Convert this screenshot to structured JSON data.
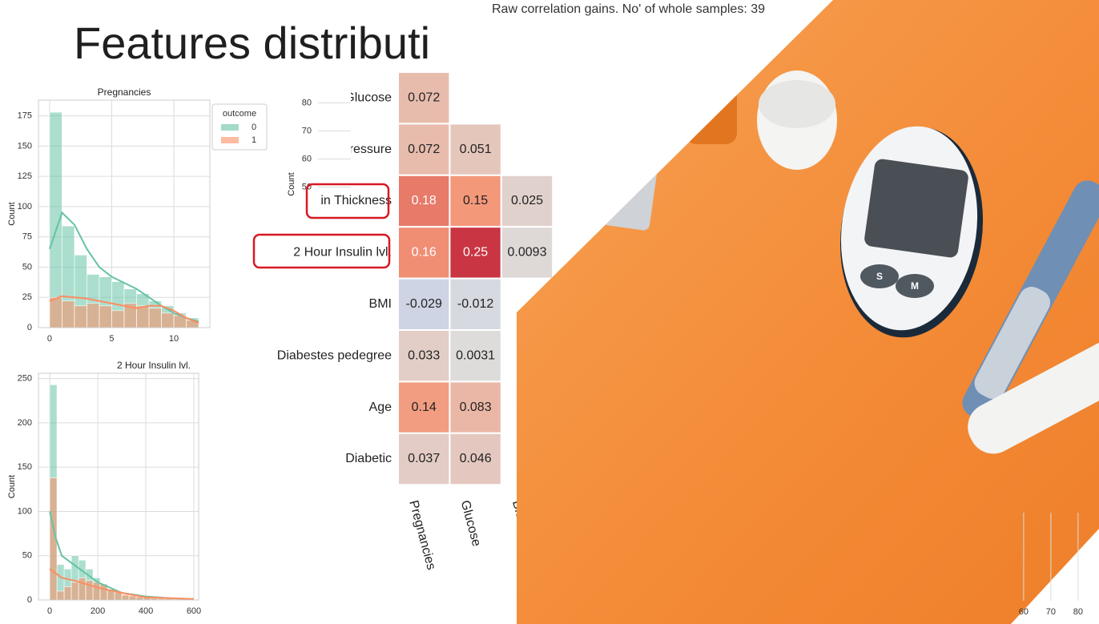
{
  "title": "Features distributi",
  "chart_data": [
    {
      "type": "histogram",
      "title": "Pregnancies",
      "ylabel": "Count",
      "bins": [
        0,
        1,
        2,
        3,
        4,
        5,
        6,
        7,
        8,
        9,
        10,
        11,
        12
      ],
      "xlim": [
        -0.9,
        12.9
      ],
      "xticks": [
        0,
        5,
        10
      ],
      "ylim": [
        0,
        188
      ],
      "yticks": [
        0,
        25,
        50,
        75,
        100,
        125,
        150,
        175
      ],
      "grid": true,
      "legend_title": "outcome",
      "kde_x": [
        0,
        1,
        2,
        3,
        4,
        5,
        6,
        7,
        8,
        9,
        10,
        11,
        12
      ],
      "series": [
        {
          "name": "0",
          "color": "#66c2a5",
          "values": [
            178,
            84,
            60,
            44,
            42,
            38,
            32,
            28,
            22,
            18,
            12,
            8
          ],
          "kde": [
            65,
            95,
            85,
            65,
            50,
            42,
            37,
            32,
            25,
            18,
            12,
            8,
            5
          ]
        },
        {
          "name": "1",
          "color": "#fc8d62",
          "values": [
            25,
            22,
            18,
            20,
            18,
            14,
            20,
            18,
            16,
            12,
            10,
            6
          ],
          "kde": [
            22,
            26,
            25,
            24,
            22,
            20,
            18,
            16,
            18,
            18,
            14,
            8,
            4
          ]
        }
      ]
    },
    {
      "type": "heatmap",
      "title": "Raw correlation gains. No' of whole samples: 39",
      "rows": [
        "Glucose",
        "Blood Pressure",
        "Skin Thickness",
        "2 Hour Insulin lvl.",
        "BMI",
        "Diabestes pedegree",
        "Age",
        "Diabetic"
      ],
      "columns": [
        "Pregnancies",
        "Glucose",
        "Blood Pressure"
      ],
      "values": [
        [
          0.072
        ],
        [
          0.072,
          0.051
        ],
        [
          0.18,
          0.15,
          0.025
        ],
        [
          0.16,
          0.25,
          0.0093
        ],
        [
          -0.029,
          -0.012
        ],
        [
          0.033,
          0.0031
        ],
        [
          0.14,
          0.083
        ],
        [
          0.037,
          0.046
        ]
      ],
      "color_range": [
        -0.3,
        0.3
      ]
    },
    {
      "type": "histogram",
      "title": "2 Hour Insulin lvl.",
      "ylabel": "Count",
      "bins": [
        0,
        30,
        60,
        90,
        120,
        150,
        180,
        210,
        240,
        270,
        300,
        330,
        360,
        390,
        420,
        450,
        480,
        510,
        540,
        570,
        600
      ],
      "xlim": [
        -47,
        620
      ],
      "xticks": [
        0,
        200,
        400,
        600
      ],
      "ylim": [
        0,
        256
      ],
      "yticks": [
        0,
        50,
        100,
        150,
        200,
        250
      ],
      "grid": true,
      "kde_x": [
        0,
        25,
        50,
        100,
        150,
        200,
        300,
        400,
        500,
        600
      ],
      "series": [
        {
          "name": "0",
          "color": "#66c2a5",
          "values": [
            243,
            40,
            35,
            50,
            45,
            35,
            25,
            18,
            12,
            8,
            5,
            4,
            3,
            3,
            2,
            1,
            1,
            1,
            0,
            1
          ],
          "kde": [
            100,
            70,
            50,
            40,
            30,
            20,
            8,
            4,
            2,
            1
          ]
        },
        {
          "name": "1",
          "color": "#fc8d62",
          "values": [
            138,
            10,
            15,
            20,
            25,
            22,
            20,
            18,
            12,
            10,
            6,
            5,
            4,
            3,
            2,
            2,
            2,
            1,
            1,
            1
          ],
          "kde": [
            35,
            30,
            25,
            22,
            18,
            14,
            8,
            3,
            2,
            1
          ]
        }
      ]
    },
    {
      "type": "histogram",
      "ylabel": "Count",
      "ylim": [
        21,
        81
      ],
      "yticks": [
        50,
        60,
        70,
        80
      ],
      "grid": true
    },
    {
      "type": "histogram",
      "xlim": [
        56.2,
        87.7
      ],
      "xticks": [
        60,
        70,
        80
      ],
      "grid": true
    }
  ]
}
